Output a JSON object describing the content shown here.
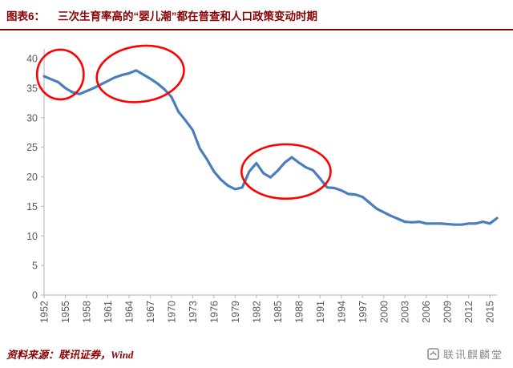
{
  "header": {
    "label": "图表6：",
    "title": "三次生育率高的“婴儿潮”都在普查和人口政策变动时期"
  },
  "footer": {
    "source": "资料来源：联讯证券，Wind",
    "watermark": "联讯麒麟堂"
  },
  "chart_data": {
    "type": "line",
    "title": "三次生育率高的“婴儿潮”都在普查和人口政策变动时期",
    "xlabel": "",
    "ylabel": "",
    "x_range": [
      1952,
      2016
    ],
    "ylim": [
      0,
      40
    ],
    "ytick_step": 5,
    "grid": false,
    "legend": false,
    "xticks": [
      1952,
      1955,
      1958,
      1961,
      1964,
      1967,
      1970,
      1973,
      1976,
      1979,
      1982,
      1985,
      1988,
      1991,
      1994,
      1997,
      2000,
      2003,
      2006,
      2009,
      2012,
      2015
    ],
    "series": [
      {
        "x": [
          1952,
          1953,
          1954,
          1955,
          1956,
          1957,
          1958,
          1959,
          1960,
          1961,
          1962,
          1963,
          1964,
          1965,
          1966,
          1967,
          1968,
          1969,
          1970,
          1971,
          1972,
          1973,
          1974,
          1975,
          1976,
          1977,
          1978,
          1979,
          1980,
          1981,
          1982,
          1983,
          1984,
          1985,
          1986,
          1987,
          1988,
          1989,
          1990,
          1991,
          1992,
          1993,
          1994,
          1995,
          1996,
          1997,
          1998,
          1999,
          2000,
          2001,
          2002,
          2003,
          2004,
          2005,
          2006,
          2007,
          2008,
          2009,
          2010,
          2011,
          2012,
          2013,
          2014,
          2015,
          2016
        ],
        "values": [
          37.0,
          36.5,
          36.0,
          35.0,
          34.3,
          34.0,
          34.5,
          35.0,
          35.6,
          36.2,
          36.8,
          37.2,
          37.5,
          38.0,
          37.3,
          36.6,
          35.8,
          34.8,
          33.5,
          31.0,
          29.5,
          27.9,
          24.8,
          23.0,
          20.9,
          19.5,
          18.5,
          17.9,
          18.2,
          20.9,
          22.3,
          20.6,
          19.9,
          21.0,
          22.4,
          23.3,
          22.4,
          21.6,
          21.1,
          19.7,
          18.2,
          18.1,
          17.7,
          17.1,
          17.0,
          16.6,
          15.6,
          14.6,
          14.0,
          13.4,
          12.9,
          12.4,
          12.3,
          12.4,
          12.1,
          12.1,
          12.1,
          12.0,
          11.9,
          11.9,
          12.1,
          12.1,
          12.4,
          12.1,
          13.0
        ]
      }
    ],
    "annotations": [
      {
        "shape": "ellipse",
        "cx_year": 1954.3,
        "cy_value": 37.3,
        "rx_years": 3.3,
        "ry_values": 4.2,
        "rotate_deg": 0
      },
      {
        "shape": "ellipse",
        "cx_year": 1965.6,
        "cy_value": 37.4,
        "rx_years": 6.2,
        "ry_values": 4.7,
        "rotate_deg": -8
      },
      {
        "shape": "ellipse",
        "cx_year": 1986.2,
        "cy_value": 20.9,
        "rx_years": 6.3,
        "ry_values": 4.6,
        "rotate_deg": 0
      }
    ],
    "colors": {
      "line": "#4a7ebb",
      "annotation": "#ff0000",
      "axis": "#bfbfbf",
      "tick_text": "#595959",
      "accent": "#8b0000",
      "watermark": "#8c8c8c"
    }
  }
}
